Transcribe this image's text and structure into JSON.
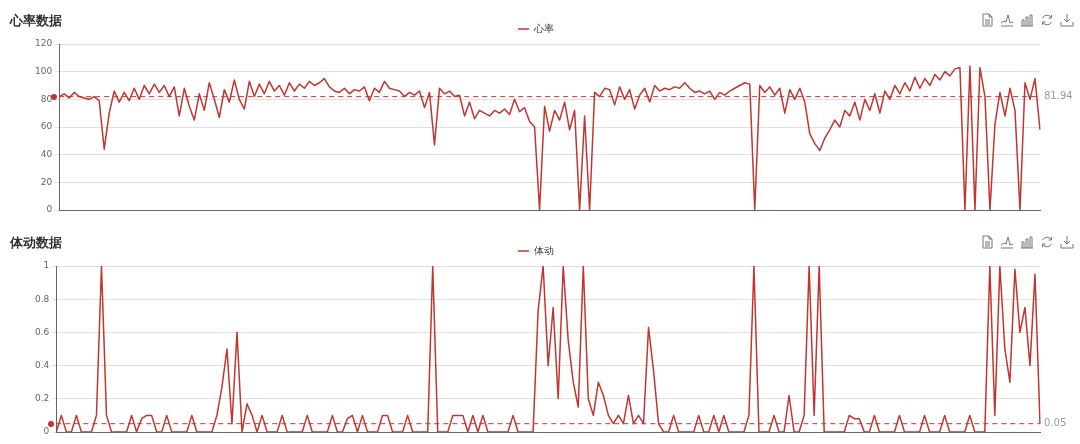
{
  "chart_data": [
    {
      "type": "line",
      "title": "心率数据",
      "legend": "top",
      "grid": "y",
      "tick_labels": "y",
      "ylim": [
        0,
        120
      ],
      "yticks": [
        0,
        20,
        40,
        60,
        80,
        100,
        120
      ],
      "categories": [
        null,
        null,
        null,
        null,
        null,
        null,
        null,
        null,
        null,
        null,
        null,
        null,
        null,
        null,
        null,
        null,
        null,
        null,
        null,
        null,
        null,
        null,
        null,
        null,
        null,
        null,
        null,
        null,
        null,
        null,
        null,
        null,
        null,
        null,
        null,
        null,
        null,
        null,
        null,
        null,
        null,
        null,
        null,
        null,
        null,
        null,
        null,
        null,
        null,
        null,
        null,
        null,
        null,
        null,
        null,
        null,
        null,
        null,
        null,
        null,
        null,
        null,
        null,
        null,
        null,
        null,
        null,
        null,
        null,
        null,
        null,
        null,
        null,
        null,
        null,
        null,
        null,
        null,
        null,
        null,
        null,
        null,
        null,
        null,
        null,
        null,
        null,
        null,
        null,
        null,
        null,
        null,
        null,
        null,
        null,
        null,
        null,
        null,
        null,
        null,
        null,
        null,
        null,
        null,
        null,
        null,
        null,
        null,
        null,
        null,
        null,
        null,
        null,
        null,
        null,
        null,
        null,
        null,
        null,
        null,
        null,
        null,
        null,
        null,
        null,
        null,
        null,
        null,
        null,
        null,
        null,
        null,
        null,
        null,
        null,
        null,
        null,
        null,
        null,
        null,
        null,
        null,
        null,
        null,
        null,
        null,
        null,
        null,
        null,
        null,
        null,
        null,
        null,
        null,
        null,
        null,
        null,
        null,
        null,
        null,
        null,
        null,
        null,
        null,
        null,
        null,
        null,
        null,
        null,
        null,
        null,
        null,
        null,
        null,
        null,
        null,
        null,
        null,
        null,
        null,
        null,
        null,
        null,
        null,
        null,
        null,
        null,
        null,
        null,
        null,
        null,
        null,
        null,
        null,
        null,
        null,
        null
      ],
      "series": [
        {
          "name": "心率",
          "color": "#c23531",
          "values": [
            82,
            84,
            81,
            85,
            82,
            81,
            80,
            82,
            79,
            44,
            70,
            86,
            78,
            85,
            79,
            88,
            80,
            90,
            84,
            91,
            85,
            90,
            82,
            89,
            68,
            88,
            75,
            65,
            84,
            72,
            92,
            80,
            67,
            87,
            78,
            94,
            80,
            73,
            93,
            82,
            91,
            84,
            93,
            86,
            90,
            83,
            92,
            86,
            91,
            88,
            93,
            90,
            92,
            95,
            89,
            86,
            85,
            88,
            84,
            87,
            86,
            89,
            79,
            88,
            85,
            93,
            88,
            87,
            86,
            82,
            85,
            83,
            86,
            74,
            85,
            47,
            88,
            84,
            86,
            82,
            83,
            68,
            78,
            66,
            72,
            70,
            68,
            72,
            70,
            73,
            69,
            80,
            71,
            74,
            64,
            60,
            0,
            75,
            57,
            72,
            65,
            78,
            58,
            72,
            0,
            68,
            0,
            85,
            82,
            88,
            87,
            76,
            89,
            80,
            87,
            73,
            83,
            88,
            78,
            90,
            86,
            88,
            87,
            89,
            88,
            92,
            88,
            85,
            86,
            84,
            86,
            80,
            85,
            83,
            86,
            88,
            90,
            92,
            91,
            0,
            90,
            85,
            89,
            83,
            88,
            70,
            87,
            80,
            88,
            78,
            55,
            48,
            43,
            52,
            58,
            65,
            60,
            72,
            68,
            78,
            65,
            80,
            72,
            84,
            70,
            86,
            80,
            90,
            84,
            92,
            86,
            96,
            88,
            95,
            90,
            98,
            94,
            100,
            97,
            102,
            103,
            0,
            104,
            0,
            103,
            82,
            0,
            62,
            85,
            68,
            88,
            72,
            0,
            92,
            80,
            95,
            58
          ]
        }
      ],
      "ref_lines": [
        {
          "axis": "y",
          "value": 81.94,
          "label": "81.94",
          "color": "#c23531",
          "line_style": "dashed"
        }
      ]
    },
    {
      "type": "line",
      "title": "体动数据",
      "legend": "top",
      "grid": "y",
      "tick_labels": "y",
      "ylim": [
        0,
        1
      ],
      "yticks": [
        0,
        0.2,
        0.4,
        0.6,
        0.8,
        1
      ],
      "categories": [
        null,
        null,
        null,
        null,
        null,
        null,
        null,
        null,
        null,
        null,
        null,
        null,
        null,
        null,
        null,
        null,
        null,
        null,
        null,
        null,
        null,
        null,
        null,
        null,
        null,
        null,
        null,
        null,
        null,
        null,
        null,
        null,
        null,
        null,
        null,
        null,
        null,
        null,
        null,
        null,
        null,
        null,
        null,
        null,
        null,
        null,
        null,
        null,
        null,
        null,
        null,
        null,
        null,
        null,
        null,
        null,
        null,
        null,
        null,
        null,
        null,
        null,
        null,
        null,
        null,
        null,
        null,
        null,
        null,
        null,
        null,
        null,
        null,
        null,
        null,
        null,
        null,
        null,
        null,
        null,
        null,
        null,
        null,
        null,
        null,
        null,
        null,
        null,
        null,
        null,
        null,
        null,
        null,
        null,
        null,
        null,
        null,
        null,
        null,
        null,
        null,
        null,
        null,
        null,
        null,
        null,
        null,
        null,
        null,
        null,
        null,
        null,
        null,
        null,
        null,
        null,
        null,
        null,
        null,
        null,
        null,
        null,
        null,
        null,
        null,
        null,
        null,
        null,
        null,
        null,
        null,
        null,
        null,
        null,
        null,
        null,
        null,
        null,
        null,
        null,
        null,
        null,
        null,
        null,
        null,
        null,
        null,
        null,
        null,
        null,
        null,
        null,
        null,
        null,
        null,
        null,
        null,
        null,
        null,
        null,
        null,
        null,
        null,
        null,
        null,
        null,
        null,
        null,
        null,
        null,
        null,
        null,
        null,
        null,
        null,
        null,
        null,
        null,
        null,
        null,
        null,
        null,
        null,
        null,
        null,
        null,
        null,
        null,
        null,
        null,
        null,
        null,
        null,
        null,
        null,
        null,
        null
      ],
      "series": [
        {
          "name": "体动",
          "color": "#c23531",
          "values": [
            0,
            0.1,
            0,
            0,
            0.1,
            0,
            0,
            0,
            0.1,
            1,
            0.1,
            0,
            0,
            0,
            0,
            0.1,
            0,
            0.08,
            0.1,
            0.1,
            0,
            0,
            0.1,
            0,
            0,
            0,
            0,
            0.1,
            0,
            0,
            0,
            0,
            0.1,
            0.27,
            0.5,
            0.05,
            0.6,
            0,
            0.17,
            0.1,
            0,
            0.1,
            0,
            0,
            0,
            0.1,
            0,
            0,
            0,
            0,
            0.1,
            0,
            0,
            0,
            0,
            0.1,
            0,
            0,
            0.08,
            0.1,
            0,
            0.1,
            0,
            0,
            0,
            0.1,
            0.1,
            0,
            0,
            0,
            0.1,
            0,
            0,
            0,
            0,
            1,
            0,
            0,
            0,
            0.1,
            0.1,
            0.1,
            0,
            0.1,
            0,
            0.1,
            0,
            0,
            0,
            0,
            0,
            0.1,
            0,
            0,
            0,
            0,
            0.73,
            1,
            0.4,
            0.75,
            0.2,
            1,
            0.55,
            0.3,
            0.15,
            1,
            0.2,
            0.1,
            0.3,
            0.22,
            0.1,
            0.05,
            0.1,
            0.05,
            0.22,
            0.05,
            0.1,
            0.05,
            0.63,
            0.37,
            0.05,
            0,
            0,
            0.1,
            0,
            0,
            0,
            0,
            0.1,
            0,
            0,
            0.1,
            0,
            0.1,
            0,
            0,
            0,
            0,
            0.1,
            1,
            0,
            0,
            0,
            0.1,
            0,
            0,
            0.22,
            0,
            0,
            0.1,
            1,
            0.1,
            1,
            0,
            0,
            0,
            0,
            0,
            0.1,
            0.08,
            0.08,
            0,
            0,
            0.1,
            0,
            0,
            0,
            0,
            0.1,
            0,
            0,
            0,
            0,
            0.1,
            0,
            0,
            0,
            0.1,
            0,
            0,
            0,
            0,
            0.1,
            0,
            0,
            0,
            1,
            0.1,
            1,
            0.5,
            0.3,
            0.98,
            0.6,
            0.75,
            0.4,
            0.95,
            0.05
          ]
        }
      ],
      "ref_lines": [
        {
          "axis": "y",
          "value": 0.05,
          "label": "0.05",
          "color": "#c23531",
          "line_style": "dashed"
        }
      ]
    }
  ]
}
